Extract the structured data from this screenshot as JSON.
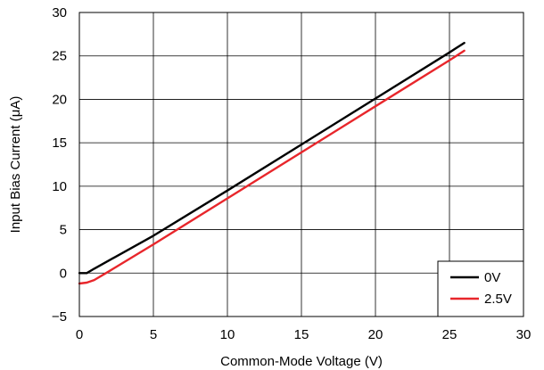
{
  "chart_data": {
    "type": "line",
    "title": "",
    "xlabel": "Common-Mode Voltage (V)",
    "ylabel": "Input Bias Current (μA)",
    "xlim": [
      0,
      30
    ],
    "ylim": [
      -5,
      30
    ],
    "xticks": [
      0,
      5,
      10,
      15,
      20,
      25,
      30
    ],
    "yticks": [
      -5,
      0,
      5,
      10,
      15,
      20,
      25,
      30
    ],
    "xtick_labels": [
      "0",
      "5",
      "10",
      "15",
      "20",
      "25",
      "30"
    ],
    "ytick_labels": [
      "−5",
      "0",
      "5",
      "10",
      "15",
      "20",
      "25",
      "30"
    ],
    "grid": true,
    "legend_position": "bottom-right",
    "series": [
      {
        "name": "0V",
        "color": "#000000",
        "x": [
          0,
          0.5,
          1,
          5,
          10,
          15,
          20,
          25,
          26
        ],
        "y": [
          0,
          0,
          0.5,
          4.3,
          9.5,
          14.8,
          20.1,
          25.4,
          26.5
        ]
      },
      {
        "name": "2.5V",
        "color": "#e8262b",
        "x": [
          0,
          0.5,
          1,
          2,
          5,
          10,
          15,
          20,
          25,
          26
        ],
        "y": [
          -1.2,
          -1.1,
          -0.8,
          0.2,
          3.3,
          8.6,
          13.9,
          19.2,
          24.5,
          25.6
        ]
      }
    ]
  }
}
